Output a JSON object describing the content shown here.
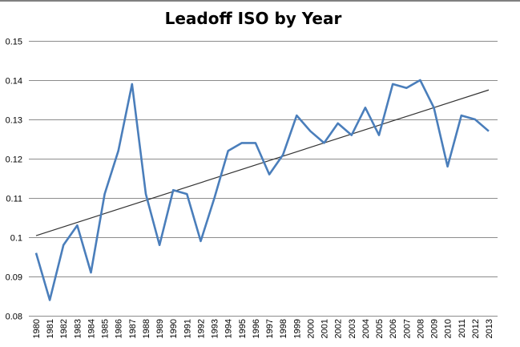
{
  "chart_data": {
    "type": "line",
    "title": "Leadoff ISO by Year",
    "xlabel": "",
    "ylabel": "",
    "categories": [
      "1980",
      "1981",
      "1982",
      "1983",
      "1984",
      "1985",
      "1986",
      "1987",
      "1988",
      "1989",
      "1990",
      "1991",
      "1992",
      "1993",
      "1994",
      "1995",
      "1996",
      "1997",
      "1998",
      "1999",
      "2000",
      "2001",
      "2002",
      "2003",
      "2004",
      "2005",
      "2006",
      "2007",
      "2008",
      "2009",
      "2010",
      "2011",
      "2012",
      "2013"
    ],
    "values": [
      0.096,
      0.084,
      0.098,
      0.103,
      0.091,
      0.111,
      0.122,
      0.139,
      0.111,
      0.098,
      0.112,
      0.111,
      0.099,
      0.11,
      0.122,
      0.124,
      0.124,
      0.116,
      0.121,
      0.131,
      0.127,
      0.124,
      0.129,
      0.126,
      0.133,
      0.126,
      0.139,
      0.138,
      0.14,
      0.133,
      0.118,
      0.131,
      0.13,
      0.127
    ],
    "trendline": {
      "type": "linear",
      "start": 0.1004,
      "end": 0.1375
    },
    "ylim": [
      0.08,
      0.15
    ],
    "yticks": [
      "0.08",
      "0.09",
      "0.1",
      "0.11",
      "0.12",
      "0.13",
      "0.14",
      "0.15"
    ],
    "grid": true,
    "legend": "none",
    "colors": {
      "series": "#4a7ebb",
      "trend": "#333333",
      "grid": "#8c8c8c"
    }
  }
}
